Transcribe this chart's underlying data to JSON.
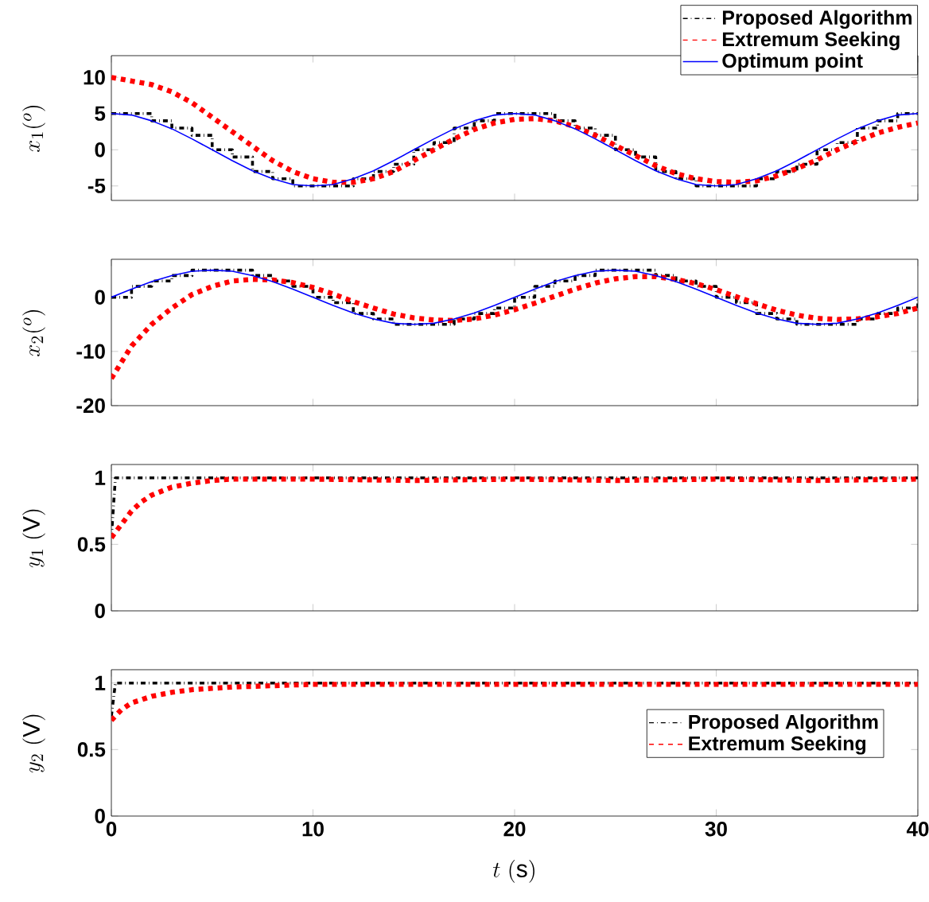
{
  "chart_data": [
    {
      "type": "line",
      "ylabel": "x_1(^o)",
      "xlim": [
        0,
        40
      ],
      "xticks": [
        0,
        10,
        20,
        30,
        40
      ],
      "ylim": [
        -7,
        13
      ],
      "yticks": [
        -5,
        0,
        5,
        10
      ],
      "tick_labels": "y",
      "legend": "top right",
      "series": [
        {
          "type": "step",
          "name": "Proposed Algorithm",
          "color": "#000000",
          "line_style": "dashdot",
          "x": [
            0,
            1,
            2,
            3,
            4,
            5,
            6,
            7,
            8,
            9,
            10,
            11,
            12,
            13,
            14,
            15,
            16,
            17,
            18,
            19,
            20,
            21,
            22,
            23,
            24,
            25,
            26,
            27,
            28,
            29,
            30,
            31,
            32,
            33,
            34,
            35,
            36,
            37,
            38,
            39,
            40
          ],
          "values": [
            5,
            5,
            4,
            3,
            2,
            0,
            -1,
            -3,
            -4,
            -5,
            -5,
            -5,
            -4,
            -3,
            -2,
            0,
            1,
            3,
            4,
            5,
            5,
            5,
            4,
            3,
            2,
            0,
            -1,
            -3,
            -4,
            -5,
            -5,
            -5,
            -4,
            -3,
            -2,
            0,
            1,
            3,
            4,
            5,
            5
          ]
        },
        {
          "name": "Extremum Seeking",
          "color": "#ff0000",
          "line_style": "dashed",
          "x": [
            0,
            1,
            2,
            3,
            4,
            5,
            6,
            7,
            8,
            9,
            10,
            11,
            12,
            13,
            14,
            15,
            16,
            17,
            18,
            19,
            20,
            21,
            22,
            23,
            24,
            25,
            26,
            27,
            28,
            29,
            30,
            31,
            32,
            33,
            34,
            35,
            36,
            37,
            38,
            39,
            40
          ],
          "values": [
            10,
            9.5,
            9,
            8,
            6.5,
            4.5,
            2.5,
            0.5,
            -1.5,
            -3,
            -4,
            -4.5,
            -4.5,
            -4,
            -3,
            -1.5,
            0,
            1.5,
            2.8,
            3.7,
            4.2,
            4.3,
            4,
            3.2,
            2,
            0.6,
            -0.8,
            -2.2,
            -3.3,
            -4,
            -4.4,
            -4.5,
            -4.3,
            -3.6,
            -2.6,
            -1.4,
            0,
            1.2,
            2.3,
            3.1,
            3.7
          ]
        },
        {
          "name": "Optimum point",
          "color": "#0000ff",
          "line_style": "solid",
          "x": [
            0,
            1,
            2,
            3,
            4,
            5,
            6,
            7,
            8,
            9,
            10,
            11,
            12,
            13,
            14,
            15,
            16,
            17,
            18,
            19,
            20,
            21,
            22,
            23,
            24,
            25,
            26,
            27,
            28,
            29,
            30,
            31,
            32,
            33,
            34,
            35,
            36,
            37,
            38,
            39,
            40
          ],
          "values": [
            5,
            4.8,
            4,
            2.9,
            1.5,
            0,
            -1.5,
            -2.9,
            -4,
            -4.8,
            -5,
            -4.8,
            -4,
            -2.9,
            -1.5,
            0,
            1.5,
            2.9,
            4,
            4.8,
            5,
            4.8,
            4,
            2.9,
            1.5,
            0,
            -1.5,
            -2.9,
            -4,
            -4.8,
            -5,
            -4.8,
            -4,
            -2.9,
            -1.5,
            0,
            1.5,
            2.9,
            4,
            4.8,
            5
          ]
        }
      ]
    },
    {
      "type": "line",
      "ylabel": "x_2(^o)",
      "xlim": [
        0,
        40
      ],
      "xticks": [
        0,
        10,
        20,
        30,
        40
      ],
      "ylim": [
        -20,
        7
      ],
      "yticks": [
        -20,
        -10,
        0
      ],
      "tick_labels": "y",
      "series": [
        {
          "type": "step",
          "color": "#000000",
          "line_style": "dashdot",
          "x": [
            0,
            1,
            2,
            3,
            4,
            5,
            6,
            7,
            8,
            9,
            10,
            11,
            12,
            13,
            14,
            15,
            16,
            17,
            18,
            19,
            20,
            21,
            22,
            23,
            24,
            25,
            26,
            27,
            28,
            29,
            30,
            31,
            32,
            33,
            34,
            35,
            36,
            37,
            38,
            39,
            40
          ],
          "values": [
            0,
            2,
            3,
            4,
            5,
            5,
            5,
            4,
            3,
            2,
            0,
            -1,
            -3,
            -4,
            -5,
            -5,
            -5,
            -4,
            -3,
            -2,
            0,
            2,
            3,
            4,
            5,
            5,
            5,
            4,
            3,
            2,
            0,
            -1,
            -3,
            -4,
            -5,
            -5,
            -5,
            -4,
            -3,
            -2,
            0
          ]
        },
        {
          "color": "#ff0000",
          "line_style": "dashed",
          "x": [
            0,
            1,
            2,
            3,
            4,
            5,
            6,
            7,
            8,
            9,
            10,
            11,
            12,
            13,
            14,
            15,
            16,
            17,
            18,
            19,
            20,
            21,
            22,
            23,
            24,
            25,
            26,
            27,
            28,
            29,
            30,
            31,
            32,
            33,
            34,
            35,
            36,
            37,
            38,
            39,
            40
          ],
          "values": [
            -15,
            -9,
            -5,
            -2,
            0.5,
            2,
            3,
            3.3,
            3.2,
            2.7,
            1.8,
            0.6,
            -0.8,
            -2,
            -3.1,
            -3.8,
            -4.2,
            -4.3,
            -4,
            -3.3,
            -2.3,
            -1.1,
            0.2,
            1.5,
            2.6,
            3.4,
            3.8,
            3.8,
            3.3,
            2.5,
            1.4,
            0.1,
            -1.2,
            -2.4,
            -3.3,
            -3.9,
            -4.1,
            -4,
            -3.6,
            -3,
            -2
          ]
        },
        {
          "color": "#0000ff",
          "line_style": "solid",
          "x": [
            0,
            1,
            2,
            3,
            4,
            5,
            6,
            7,
            8,
            9,
            10,
            11,
            12,
            13,
            14,
            15,
            16,
            17,
            18,
            19,
            20,
            21,
            22,
            23,
            24,
            25,
            26,
            27,
            28,
            29,
            30,
            31,
            32,
            33,
            34,
            35,
            36,
            37,
            38,
            39,
            40
          ],
          "values": [
            0,
            1.5,
            2.9,
            4,
            4.8,
            5,
            4.8,
            4,
            2.9,
            1.5,
            0,
            -1.5,
            -2.9,
            -4,
            -4.8,
            -5,
            -4.8,
            -4,
            -2.9,
            -1.5,
            0,
            1.5,
            2.9,
            4,
            4.8,
            5,
            4.8,
            4,
            2.9,
            1.5,
            0,
            -1.5,
            -2.9,
            -4,
            -4.8,
            -5,
            -4.8,
            -4,
            -2.9,
            -1.5,
            0
          ]
        }
      ]
    },
    {
      "type": "line",
      "ylabel": "y_1\\ (\\mathrm{V})",
      "xlim": [
        0,
        40
      ],
      "xticks": [
        0,
        10,
        20,
        30,
        40
      ],
      "ylim": [
        0,
        1.1
      ],
      "yticks": [
        0,
        0.5,
        1
      ],
      "tick_labels": "y",
      "series": [
        {
          "color": "#000000",
          "line_style": "dashdot",
          "x": [
            0,
            0.2,
            1,
            10,
            20,
            30,
            40
          ],
          "values": [
            0.55,
            1,
            1,
            1,
            1,
            1,
            1
          ]
        },
        {
          "color": "#ff0000",
          "line_style": "dashed",
          "x": [
            0,
            0.5,
            1,
            1.5,
            2,
            3,
            4,
            5,
            6,
            8,
            10,
            15,
            20,
            25,
            30,
            35,
            40
          ],
          "values": [
            0.55,
            0.65,
            0.75,
            0.82,
            0.87,
            0.93,
            0.96,
            0.98,
            0.99,
            0.99,
            0.99,
            0.98,
            0.99,
            0.98,
            0.99,
            0.98,
            0.99
          ]
        }
      ]
    },
    {
      "type": "line",
      "ylabel": "y_2\\ (\\mathrm{V})",
      "xlabel": "t\\ (\\mathrm{s})",
      "xlim": [
        0,
        40
      ],
      "xticks": [
        0,
        10,
        20,
        30,
        40
      ],
      "ylim": [
        0,
        1.1
      ],
      "yticks": [
        0,
        0.5,
        1
      ],
      "legend": "right",
      "series": [
        {
          "name": "Proposed Algorithm",
          "color": "#000000",
          "line_style": "dashdot",
          "x": [
            0,
            0.2,
            1,
            10,
            20,
            30,
            40
          ],
          "values": [
            0.75,
            1,
            1,
            1,
            1,
            1,
            1
          ]
        },
        {
          "name": "Extremum Seeking",
          "color": "#ff0000",
          "line_style": "dashed",
          "x": [
            0,
            0.5,
            1,
            2,
            3,
            4,
            5,
            6,
            8,
            10,
            15,
            20,
            25,
            30,
            35,
            40
          ],
          "values": [
            0.72,
            0.8,
            0.85,
            0.9,
            0.93,
            0.95,
            0.96,
            0.97,
            0.98,
            0.99,
            0.99,
            0.99,
            0.99,
            0.99,
            0.99,
            0.99
          ]
        }
      ]
    }
  ]
}
